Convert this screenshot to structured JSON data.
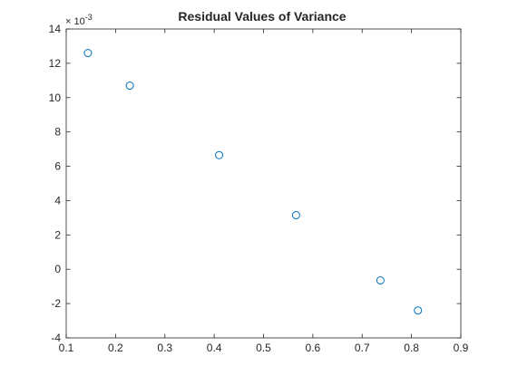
{
  "chart_data": {
    "type": "scatter",
    "title": "Residual Values of Variance",
    "xlabel": "",
    "ylabel": "",
    "xlim": [
      0.1,
      0.9
    ],
    "ylim": [
      -4,
      14
    ],
    "x_ticks": [
      0.1,
      0.2,
      0.3,
      0.4,
      0.5,
      0.6,
      0.7,
      0.8,
      0.9
    ],
    "x_tick_labels": [
      "0.1",
      "0.2",
      "0.3",
      "0.4",
      "0.5",
      "0.6",
      "0.7",
      "0.8",
      "0.9"
    ],
    "y_ticks": [
      -4,
      -2,
      0,
      2,
      4,
      6,
      8,
      10,
      12,
      14
    ],
    "y_tick_labels": [
      "-4",
      "-2",
      "0",
      "2",
      "4",
      "6",
      "8",
      "10",
      "12",
      "14"
    ],
    "y_exponent_label": "× 10",
    "y_exponent_power": "-3",
    "grid": false,
    "marker": "open-circle",
    "colors": {
      "marker": "#0072BD",
      "axes": "#262626",
      "background": "#ffffff"
    },
    "series": [
      {
        "x": [
          0.144,
          0.229,
          0.41,
          0.566,
          0.737,
          0.813
        ],
        "y": [
          12.6,
          10.7,
          6.65,
          3.15,
          -0.65,
          -2.4
        ]
      }
    ]
  }
}
